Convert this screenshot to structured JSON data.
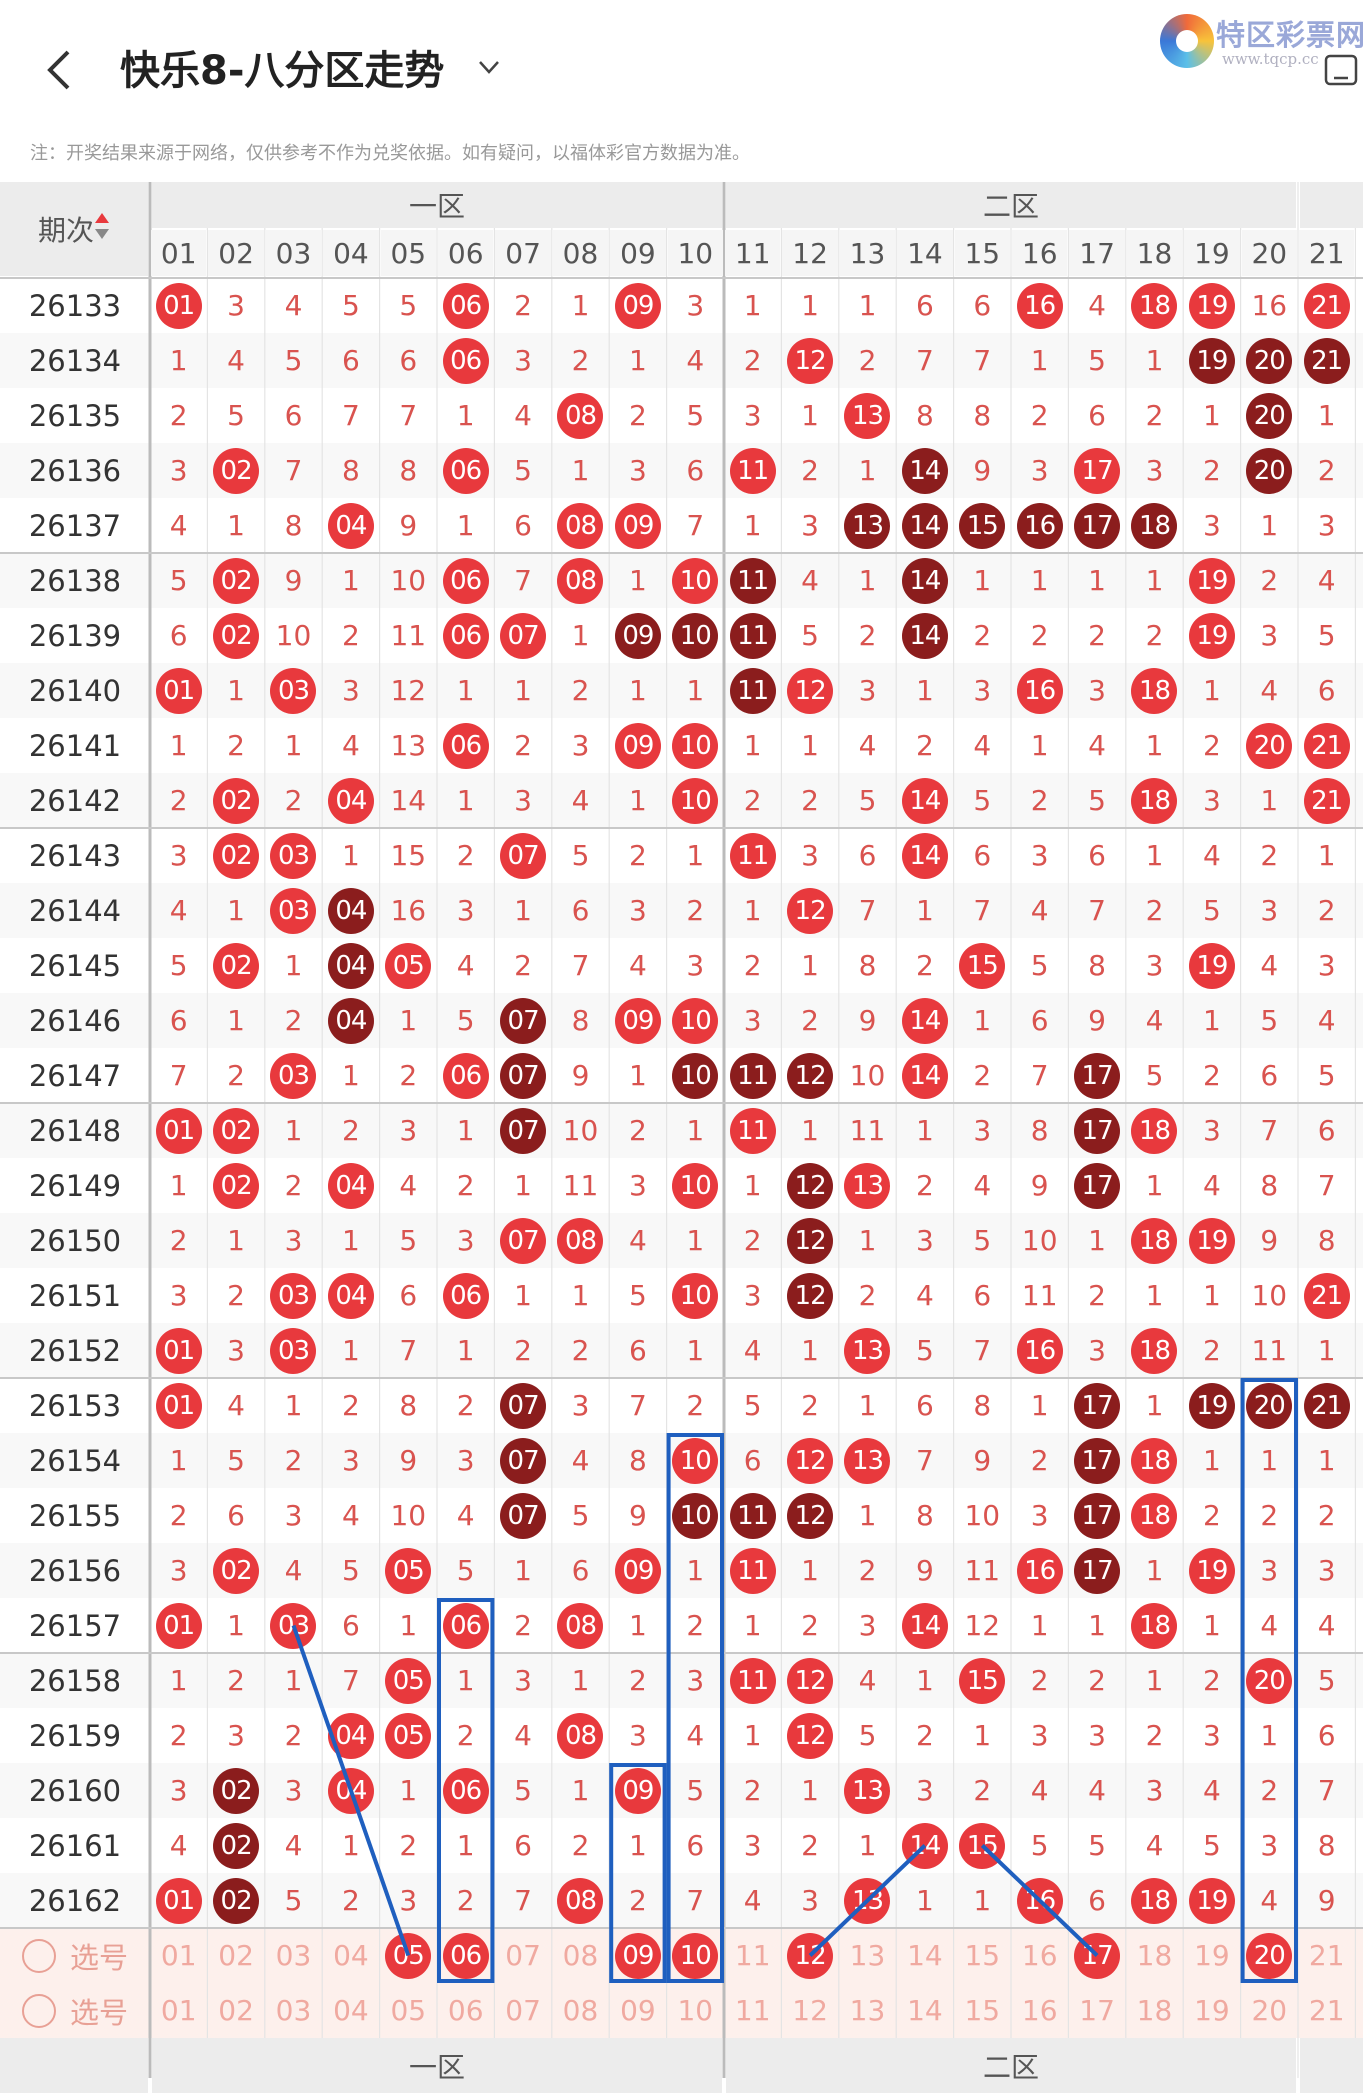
{
  "header": {
    "title": "快乐8-八分区走势",
    "logo_text": "特区彩票网",
    "logo_url": "www.tqcp.cc"
  },
  "note": "注：开奖结果来源于网络，仅供参考不作为兑奖依据。如有疑问，以福体彩官方数据为准。",
  "table": {
    "issue_header": "期次",
    "zone1": "一区",
    "zone2": "二区",
    "columns": [
      "01",
      "02",
      "03",
      "04",
      "05",
      "06",
      "07",
      "08",
      "09",
      "10",
      "11",
      "12",
      "13",
      "14",
      "15",
      "16",
      "17",
      "18",
      "19",
      "20",
      "21"
    ],
    "select_label": "选号",
    "rows": [
      {
        "issue": "26133",
        "cells": [
          "R01",
          "3",
          "4",
          "5",
          "5",
          "R06",
          "2",
          "1",
          "R09",
          "3",
          "1",
          "1",
          "1",
          "6",
          "6",
          "R16",
          "4",
          "R18",
          "R19",
          "16",
          "R21"
        ]
      },
      {
        "issue": "26134",
        "cells": [
          "1",
          "4",
          "5",
          "6",
          "6",
          "R06",
          "3",
          "2",
          "1",
          "4",
          "2",
          "R12",
          "2",
          "7",
          "7",
          "1",
          "5",
          "1",
          "D19",
          "D20",
          "D21"
        ]
      },
      {
        "issue": "26135",
        "cells": [
          "2",
          "5",
          "6",
          "7",
          "7",
          "1",
          "4",
          "R08",
          "2",
          "5",
          "3",
          "1",
          "R13",
          "8",
          "8",
          "2",
          "6",
          "2",
          "1",
          "D20",
          "1"
        ]
      },
      {
        "issue": "26136",
        "cells": [
          "3",
          "R02",
          "7",
          "8",
          "8",
          "R06",
          "5",
          "1",
          "3",
          "6",
          "R11",
          "2",
          "1",
          "D14",
          "9",
          "3",
          "R17",
          "3",
          "2",
          "D20",
          "2"
        ]
      },
      {
        "issue": "26137",
        "cells": [
          "4",
          "1",
          "8",
          "R04",
          "9",
          "1",
          "6",
          "R08",
          "R09",
          "7",
          "1",
          "3",
          "D13",
          "D14",
          "D15",
          "D16",
          "D17",
          "D18",
          "3",
          "1",
          "3"
        ]
      },
      {
        "issue": "26138",
        "cells": [
          "5",
          "R02",
          "9",
          "1",
          "10",
          "R06",
          "7",
          "R08",
          "1",
          "R10",
          "D11",
          "4",
          "1",
          "D14",
          "1",
          "1",
          "1",
          "1",
          "R19",
          "2",
          "4"
        ]
      },
      {
        "issue": "26139",
        "cells": [
          "6",
          "R02",
          "10",
          "2",
          "11",
          "R06",
          "R07",
          "1",
          "D09",
          "D10",
          "D11",
          "5",
          "2",
          "D14",
          "2",
          "2",
          "2",
          "2",
          "R19",
          "3",
          "5"
        ]
      },
      {
        "issue": "26140",
        "cells": [
          "R01",
          "1",
          "R03",
          "3",
          "12",
          "1",
          "1",
          "2",
          "1",
          "1",
          "D11",
          "R12",
          "3",
          "1",
          "3",
          "R16",
          "3",
          "R18",
          "1",
          "4",
          "6"
        ]
      },
      {
        "issue": "26141",
        "cells": [
          "1",
          "2",
          "1",
          "4",
          "13",
          "R06",
          "2",
          "3",
          "R09",
          "R10",
          "1",
          "1",
          "4",
          "2",
          "4",
          "1",
          "4",
          "1",
          "2",
          "R20",
          "R21"
        ]
      },
      {
        "issue": "26142",
        "cells": [
          "2",
          "R02",
          "2",
          "R04",
          "14",
          "1",
          "3",
          "4",
          "1",
          "R10",
          "2",
          "2",
          "5",
          "R14",
          "5",
          "2",
          "5",
          "R18",
          "3",
          "1",
          "R21"
        ]
      },
      {
        "issue": "26143",
        "cells": [
          "3",
          "R02",
          "R03",
          "1",
          "15",
          "2",
          "R07",
          "5",
          "2",
          "1",
          "R11",
          "3",
          "6",
          "R14",
          "6",
          "3",
          "6",
          "1",
          "4",
          "2",
          "1"
        ]
      },
      {
        "issue": "26144",
        "cells": [
          "4",
          "1",
          "R03",
          "D04",
          "16",
          "3",
          "1",
          "6",
          "3",
          "2",
          "1",
          "R12",
          "7",
          "1",
          "7",
          "4",
          "7",
          "2",
          "5",
          "3",
          "2"
        ]
      },
      {
        "issue": "26145",
        "cells": [
          "5",
          "R02",
          "1",
          "D04",
          "R05",
          "4",
          "2",
          "7",
          "4",
          "3",
          "2",
          "1",
          "8",
          "2",
          "R15",
          "5",
          "8",
          "3",
          "R19",
          "4",
          "3"
        ]
      },
      {
        "issue": "26146",
        "cells": [
          "6",
          "1",
          "2",
          "D04",
          "1",
          "5",
          "D07",
          "8",
          "R09",
          "R10",
          "3",
          "2",
          "9",
          "R14",
          "1",
          "6",
          "9",
          "4",
          "1",
          "5",
          "4"
        ]
      },
      {
        "issue": "26147",
        "cells": [
          "7",
          "2",
          "R03",
          "1",
          "2",
          "R06",
          "D07",
          "9",
          "1",
          "D10",
          "D11",
          "D12",
          "10",
          "R14",
          "2",
          "7",
          "D17",
          "5",
          "2",
          "6",
          "5"
        ]
      },
      {
        "issue": "26148",
        "cells": [
          "R01",
          "R02",
          "1",
          "2",
          "3",
          "1",
          "D07",
          "10",
          "2",
          "1",
          "R11",
          "1",
          "11",
          "1",
          "3",
          "8",
          "D17",
          "R18",
          "3",
          "7",
          "6"
        ]
      },
      {
        "issue": "26149",
        "cells": [
          "1",
          "R02",
          "2",
          "R04",
          "4",
          "2",
          "1",
          "11",
          "3",
          "R10",
          "1",
          "D12",
          "R13",
          "2",
          "4",
          "9",
          "D17",
          "1",
          "4",
          "8",
          "7"
        ]
      },
      {
        "issue": "26150",
        "cells": [
          "2",
          "1",
          "3",
          "1",
          "5",
          "3",
          "R07",
          "R08",
          "4",
          "1",
          "2",
          "D12",
          "1",
          "3",
          "5",
          "10",
          "1",
          "R18",
          "R19",
          "9",
          "8"
        ]
      },
      {
        "issue": "26151",
        "cells": [
          "3",
          "2",
          "R03",
          "R04",
          "6",
          "R06",
          "1",
          "1",
          "5",
          "R10",
          "3",
          "D12",
          "2",
          "4",
          "6",
          "11",
          "2",
          "1",
          "1",
          "10",
          "R21"
        ]
      },
      {
        "issue": "26152",
        "cells": [
          "R01",
          "3",
          "R03",
          "1",
          "7",
          "1",
          "2",
          "2",
          "6",
          "1",
          "4",
          "1",
          "R13",
          "5",
          "7",
          "R16",
          "3",
          "R18",
          "2",
          "11",
          "1"
        ]
      },
      {
        "issue": "26153",
        "cells": [
          "R01",
          "4",
          "1",
          "2",
          "8",
          "2",
          "D07",
          "3",
          "7",
          "2",
          "5",
          "2",
          "1",
          "6",
          "8",
          "1",
          "D17",
          "1",
          "D19",
          "D20",
          "D21"
        ]
      },
      {
        "issue": "26154",
        "cells": [
          "1",
          "5",
          "2",
          "3",
          "9",
          "3",
          "D07",
          "4",
          "8",
          "R10",
          "6",
          "R12",
          "R13",
          "7",
          "9",
          "2",
          "D17",
          "R18",
          "1",
          "1",
          "1"
        ]
      },
      {
        "issue": "26155",
        "cells": [
          "2",
          "6",
          "3",
          "4",
          "10",
          "4",
          "D07",
          "5",
          "9",
          "D10",
          "D11",
          "D12",
          "1",
          "8",
          "10",
          "3",
          "D17",
          "R18",
          "2",
          "2",
          "2"
        ]
      },
      {
        "issue": "26156",
        "cells": [
          "3",
          "R02",
          "4",
          "5",
          "R05",
          "5",
          "1",
          "6",
          "R09",
          "1",
          "R11",
          "1",
          "2",
          "9",
          "11",
          "R16",
          "D17",
          "1",
          "R19",
          "3",
          "3"
        ]
      },
      {
        "issue": "26157",
        "cells": [
          "R01",
          "1",
          "R03",
          "6",
          "1",
          "R06",
          "2",
          "R08",
          "1",
          "2",
          "1",
          "2",
          "3",
          "R14",
          "12",
          "1",
          "1",
          "R18",
          "1",
          "4",
          "4"
        ]
      },
      {
        "issue": "26158",
        "cells": [
          "1",
          "2",
          "1",
          "7",
          "R05",
          "1",
          "3",
          "1",
          "2",
          "3",
          "R11",
          "R12",
          "4",
          "1",
          "R15",
          "2",
          "2",
          "1",
          "2",
          "R20",
          "5"
        ]
      },
      {
        "issue": "26159",
        "cells": [
          "2",
          "3",
          "2",
          "R04",
          "R05",
          "2",
          "4",
          "R08",
          "3",
          "4",
          "1",
          "R12",
          "5",
          "2",
          "1",
          "3",
          "3",
          "2",
          "3",
          "1",
          "6"
        ]
      },
      {
        "issue": "26160",
        "cells": [
          "3",
          "D02",
          "3",
          "R04",
          "1",
          "R06",
          "5",
          "1",
          "R09",
          "5",
          "2",
          "1",
          "R13",
          "3",
          "2",
          "4",
          "4",
          "3",
          "4",
          "2",
          "7"
        ]
      },
      {
        "issue": "26161",
        "cells": [
          "4",
          "D02",
          "4",
          "1",
          "2",
          "1",
          "6",
          "2",
          "1",
          "6",
          "3",
          "2",
          "1",
          "R14",
          "R15",
          "5",
          "5",
          "4",
          "5",
          "3",
          "8"
        ]
      },
      {
        "issue": "26162",
        "cells": [
          "R01",
          "D02",
          "5",
          "2",
          "3",
          "2",
          "7",
          "R08",
          "2",
          "7",
          "4",
          "3",
          "R13",
          "1",
          "1",
          "R16",
          "6",
          "R18",
          "R19",
          "4",
          "9"
        ]
      }
    ],
    "select_row1": [
      "01",
      "02",
      "03",
      "04",
      "R05",
      "R06",
      "07",
      "08",
      "R09",
      "R10",
      "11",
      "R12",
      "13",
      "14",
      "15",
      "16",
      "R17",
      "18",
      "19",
      "R20",
      "21"
    ],
    "select_row2": [
      "01",
      "02",
      "03",
      "04",
      "05",
      "06",
      "07",
      "08",
      "09",
      "10",
      "11",
      "12",
      "13",
      "14",
      "15",
      "16",
      "17",
      "18",
      "19",
      "20",
      "21"
    ]
  },
  "colors": {
    "red": "#e8393d",
    "dark": "#8b1d1d",
    "header_bg": "#ececec",
    "line": "#1f5fbf"
  }
}
